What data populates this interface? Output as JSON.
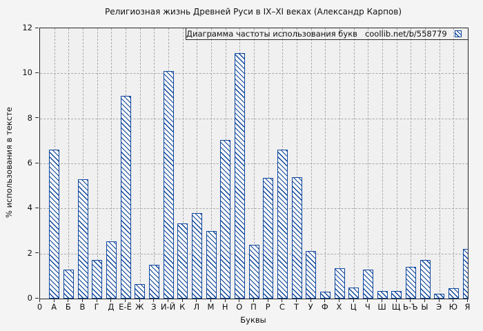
{
  "title": "Религиозная жизнь Древней Руси в IX–XI веках (Александр Карпов)",
  "legend": {
    "label": "Диаграмма частоты использования букв",
    "source": "coollib.net/b/558779"
  },
  "colors": {
    "bar_blue": "#0d459c",
    "bar_fill": "#f9f9f9",
    "figure_background": "#f4f4f4",
    "plot_background": "#f0f0f1",
    "grid": "#a9a9a9",
    "axis": "#262626"
  },
  "chart_data": {
    "type": "bar",
    "title": "Религиозная жизнь Древней Руси в IX–XI веках (Александр Карпов)",
    "xlabel": "Буквы",
    "ylabel": "% использования в тексте",
    "ylim": [
      0,
      12
    ],
    "yticks": [
      0,
      2,
      4,
      6,
      8,
      10,
      12
    ],
    "x_first_tick_label": "0",
    "grid": true,
    "legend_position": "top-right-inside",
    "bar_style": "blue outline with backslash diagonal hatch",
    "categories": [
      "А",
      "Б",
      "В",
      "Г",
      "Д",
      "Е-Ё",
      "Ж",
      "З",
      "И-Й",
      "К",
      "Л",
      "М",
      "Н",
      "О",
      "П",
      "Р",
      "С",
      "Т",
      "У",
      "Ф",
      "Х",
      "Ц",
      "Ч",
      "Ш",
      "Щ",
      "Ь-Ъ",
      "Ы",
      "Э",
      "Ю",
      "Я"
    ],
    "values": [
      6.6,
      1.3,
      5.3,
      1.7,
      2.55,
      9.0,
      0.65,
      1.5,
      10.1,
      3.35,
      3.8,
      3.0,
      7.05,
      10.9,
      2.4,
      5.35,
      6.6,
      5.4,
      2.1,
      0.3,
      1.35,
      0.5,
      1.3,
      0.35,
      0.35,
      1.4,
      1.7,
      0.2,
      0.45,
      2.2
    ]
  }
}
